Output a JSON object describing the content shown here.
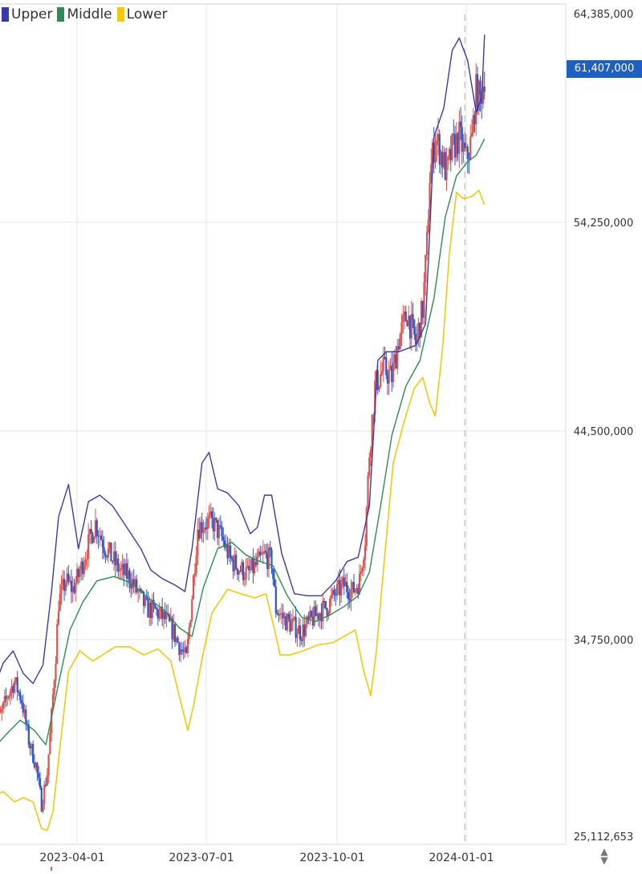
{
  "chart_data": {
    "type": "candlestick",
    "legend": [
      {
        "key": "upper",
        "label": "Upper",
        "color": "#3a3aa6"
      },
      {
        "key": "middle",
        "label": "Middle",
        "color": "#2e8b57"
      },
      {
        "key": "lower",
        "label": "Lower",
        "color": "#f2c811"
      }
    ],
    "y_tick_labels": [
      "64,385,000",
      "54,250,000",
      "44,500,000",
      "34,750,000",
      "25,112,653"
    ],
    "y_tick_values": [
      64385000,
      54250000,
      44500000,
      34750000,
      25112653
    ],
    "ylim": [
      25112653,
      64385000
    ],
    "x_tick_labels": [
      "2023-04-01",
      "2023-07-01",
      "2023-10-01",
      "2024-01-01"
    ],
    "x_tick_dates": [
      "2023-04-01",
      "2023-07-01",
      "2023-10-01",
      "2024-01-01"
    ],
    "xlim": [
      "2023-02-01",
      "2024-01-14"
    ],
    "last_price_label": "61,407,000",
    "last_price_value": 61407000,
    "crosshair_date": "2023-12-31",
    "grid": true,
    "legend_position": "top-left",
    "colors": {
      "up": "#d9534f",
      "down": "#2f56c7",
      "badge": "#1f5fbf",
      "grid": "#e6e6e6",
      "crosshair": "#bbbbbb"
    },
    "price_path": [
      [
        "2023-02-01",
        30500000
      ],
      [
        "2023-02-06",
        31000000
      ],
      [
        "2023-02-11",
        32000000
      ],
      [
        "2023-02-16",
        32700000
      ],
      [
        "2023-02-21",
        31800000
      ],
      [
        "2023-02-26",
        29800000
      ],
      [
        "2023-03-03",
        28600000
      ],
      [
        "2023-03-07",
        26700000
      ],
      [
        "2023-03-11",
        28200000
      ],
      [
        "2023-03-14",
        31000000
      ],
      [
        "2023-03-17",
        34000000
      ],
      [
        "2023-03-19",
        36500000
      ],
      [
        "2023-03-24",
        37500000
      ],
      [
        "2023-03-29",
        37100000
      ],
      [
        "2023-04-03",
        37900000
      ],
      [
        "2023-04-08",
        39000000
      ],
      [
        "2023-04-14",
        40200000
      ],
      [
        "2023-04-20",
        39200000
      ],
      [
        "2023-04-26",
        38500000
      ],
      [
        "2023-05-02",
        37900000
      ],
      [
        "2023-05-08",
        37700000
      ],
      [
        "2023-05-14",
        36900000
      ],
      [
        "2023-05-20",
        36200000
      ],
      [
        "2023-05-26",
        36100000
      ],
      [
        "2023-06-02",
        35700000
      ],
      [
        "2023-06-08",
        35100000
      ],
      [
        "2023-06-13",
        34300000
      ],
      [
        "2023-06-17",
        33800000
      ],
      [
        "2023-06-21",
        36800000
      ],
      [
        "2023-06-25",
        40000000
      ],
      [
        "2023-06-30",
        40200000
      ],
      [
        "2023-07-06",
        40200000
      ],
      [
        "2023-07-12",
        39500000
      ],
      [
        "2023-07-18",
        38500000
      ],
      [
        "2023-07-24",
        38100000
      ],
      [
        "2023-07-30",
        37800000
      ],
      [
        "2023-08-05",
        38200000
      ],
      [
        "2023-08-11",
        38700000
      ],
      [
        "2023-08-16",
        38400000
      ],
      [
        "2023-08-19",
        36200000
      ],
      [
        "2023-08-25",
        35700000
      ],
      [
        "2023-08-31",
        35400000
      ],
      [
        "2023-09-06",
        35100000
      ],
      [
        "2023-09-12",
        35600000
      ],
      [
        "2023-09-18",
        36000000
      ],
      [
        "2023-09-24",
        36300000
      ],
      [
        "2023-09-30",
        36900000
      ],
      [
        "2023-10-06",
        37300000
      ],
      [
        "2023-10-12",
        37000000
      ],
      [
        "2023-10-17",
        37500000
      ],
      [
        "2023-10-21",
        39500000
      ],
      [
        "2023-10-24",
        43500000
      ],
      [
        "2023-10-28",
        46600000
      ],
      [
        "2023-11-03",
        47400000
      ],
      [
        "2023-11-09",
        47000000
      ],
      [
        "2023-11-14",
        48800000
      ],
      [
        "2023-11-20",
        50000000
      ],
      [
        "2023-11-26",
        48600000
      ],
      [
        "2023-12-01",
        50200000
      ],
      [
        "2023-12-04",
        53200000
      ],
      [
        "2023-12-06",
        56500000
      ],
      [
        "2023-12-10",
        58400000
      ],
      [
        "2023-12-14",
        57600000
      ],
      [
        "2023-12-18",
        56600000
      ],
      [
        "2023-12-22",
        57800000
      ],
      [
        "2023-12-27",
        58400000
      ],
      [
        "2024-01-01",
        57300000
      ],
      [
        "2024-01-05",
        58300000
      ],
      [
        "2024-01-08",
        60600000
      ],
      [
        "2024-01-11",
        60200000
      ],
      [
        "2024-01-14",
        61400000
      ]
    ],
    "bands": {
      "upper": [
        [
          "2023-02-01",
          32300000
        ],
        [
          "2023-02-08",
          33600000
        ],
        [
          "2023-02-15",
          34200000
        ],
        [
          "2023-02-22",
          33100000
        ],
        [
          "2023-03-01",
          32600000
        ],
        [
          "2023-03-08",
          33500000
        ],
        [
          "2023-03-14",
          37000000
        ],
        [
          "2023-03-19",
          40500000
        ],
        [
          "2023-03-26",
          42000000
        ],
        [
          "2023-04-02",
          39000000
        ],
        [
          "2023-04-09",
          41200000
        ],
        [
          "2023-04-17",
          41500000
        ],
        [
          "2023-04-26",
          41000000
        ],
        [
          "2023-05-06",
          40000000
        ],
        [
          "2023-05-16",
          39000000
        ],
        [
          "2023-05-23",
          38000000
        ],
        [
          "2023-05-31",
          37600000
        ],
        [
          "2023-06-09",
          37300000
        ],
        [
          "2023-06-16",
          37000000
        ],
        [
          "2023-06-21",
          39000000
        ],
        [
          "2023-06-28",
          43000000
        ],
        [
          "2023-07-03",
          43500000
        ],
        [
          "2023-07-09",
          41800000
        ],
        [
          "2023-07-16",
          41600000
        ],
        [
          "2023-07-24",
          41000000
        ],
        [
          "2023-08-01",
          39700000
        ],
        [
          "2023-08-06",
          40000000
        ],
        [
          "2023-08-11",
          41500000
        ],
        [
          "2023-08-16",
          41500000
        ],
        [
          "2023-08-23",
          38800000
        ],
        [
          "2023-09-01",
          36900000
        ],
        [
          "2023-09-10",
          36800000
        ],
        [
          "2023-09-20",
          36800000
        ],
        [
          "2023-09-30",
          37500000
        ],
        [
          "2023-10-08",
          38400000
        ],
        [
          "2023-10-16",
          38600000
        ],
        [
          "2023-10-24",
          41000000
        ],
        [
          "2023-10-30",
          47800000
        ],
        [
          "2023-11-05",
          48200000
        ],
        [
          "2023-11-14",
          48200000
        ],
        [
          "2023-11-26",
          48500000
        ],
        [
          "2023-12-03",
          49500000
        ],
        [
          "2023-12-09",
          58400000
        ],
        [
          "2023-12-16",
          59800000
        ],
        [
          "2023-12-22",
          62600000
        ],
        [
          "2023-12-27",
          63200000
        ],
        [
          "2024-01-02",
          62100000
        ],
        [
          "2024-01-08",
          59600000
        ],
        [
          "2024-01-12",
          60300000
        ],
        [
          "2024-01-14",
          64400000
        ]
      ],
      "middle": [
        [
          "2023-02-01",
          29400000
        ],
        [
          "2023-02-10",
          30100000
        ],
        [
          "2023-02-20",
          30800000
        ],
        [
          "2023-03-02",
          30300000
        ],
        [
          "2023-03-10",
          29600000
        ],
        [
          "2023-03-19",
          32600000
        ],
        [
          "2023-03-27",
          35200000
        ],
        [
          "2023-04-05",
          36500000
        ],
        [
          "2023-04-15",
          37500000
        ],
        [
          "2023-04-27",
          37700000
        ],
        [
          "2023-05-09",
          37400000
        ],
        [
          "2023-05-21",
          36700000
        ],
        [
          "2023-06-02",
          36100000
        ],
        [
          "2023-06-12",
          35300000
        ],
        [
          "2023-06-21",
          34900000
        ],
        [
          "2023-06-29",
          37200000
        ],
        [
          "2023-07-09",
          39000000
        ],
        [
          "2023-07-19",
          39300000
        ],
        [
          "2023-07-29",
          38700000
        ],
        [
          "2023-08-08",
          38400000
        ],
        [
          "2023-08-17",
          38200000
        ],
        [
          "2023-08-27",
          36800000
        ],
        [
          "2023-09-06",
          35800000
        ],
        [
          "2023-09-16",
          35600000
        ],
        [
          "2023-09-26",
          35900000
        ],
        [
          "2023-10-06",
          36300000
        ],
        [
          "2023-10-16",
          36800000
        ],
        [
          "2023-10-24",
          37900000
        ],
        [
          "2023-11-01",
          41000000
        ],
        [
          "2023-11-09",
          44300000
        ],
        [
          "2023-11-19",
          46600000
        ],
        [
          "2023-11-29",
          47800000
        ],
        [
          "2023-12-09",
          50700000
        ],
        [
          "2023-12-17",
          54500000
        ],
        [
          "2023-12-25",
          56500000
        ],
        [
          "2024-01-02",
          57200000
        ],
        [
          "2024-01-08",
          57500000
        ],
        [
          "2024-01-14",
          58300000
        ]
      ],
      "lower": [
        [
          "2023-02-01",
          27100000
        ],
        [
          "2023-02-08",
          27300000
        ],
        [
          "2023-02-16",
          26800000
        ],
        [
          "2023-02-22",
          27000000
        ],
        [
          "2023-03-01",
          26800000
        ],
        [
          "2023-03-07",
          25500000
        ],
        [
          "2023-03-11",
          25400000
        ],
        [
          "2023-03-15",
          26300000
        ],
        [
          "2023-03-20",
          29500000
        ],
        [
          "2023-03-26",
          33200000
        ],
        [
          "2023-04-03",
          34200000
        ],
        [
          "2023-04-12",
          33700000
        ],
        [
          "2023-04-19",
          34000000
        ],
        [
          "2023-04-28",
          34400000
        ],
        [
          "2023-05-08",
          34400000
        ],
        [
          "2023-05-18",
          34000000
        ],
        [
          "2023-05-28",
          34300000
        ],
        [
          "2023-06-06",
          33700000
        ],
        [
          "2023-06-13",
          31700000
        ],
        [
          "2023-06-18",
          30300000
        ],
        [
          "2023-06-22",
          31500000
        ],
        [
          "2023-06-28",
          33800000
        ],
        [
          "2023-07-05",
          36000000
        ],
        [
          "2023-07-16",
          37100000
        ],
        [
          "2023-07-25",
          36900000
        ],
        [
          "2023-08-04",
          36700000
        ],
        [
          "2023-08-12",
          36900000
        ],
        [
          "2023-08-17",
          35500000
        ],
        [
          "2023-08-22",
          34000000
        ],
        [
          "2023-08-29",
          34000000
        ],
        [
          "2023-09-07",
          34200000
        ],
        [
          "2023-09-18",
          34500000
        ],
        [
          "2023-09-28",
          34600000
        ],
        [
          "2023-10-06",
          34900000
        ],
        [
          "2023-10-14",
          35200000
        ],
        [
          "2023-10-20",
          33200000
        ],
        [
          "2023-10-25",
          32000000
        ],
        [
          "2023-10-29",
          34200000
        ],
        [
          "2023-11-03",
          38000000
        ],
        [
          "2023-11-10",
          43000000
        ],
        [
          "2023-11-18",
          45000000
        ],
        [
          "2023-11-25",
          46500000
        ],
        [
          "2023-12-01",
          47000000
        ],
        [
          "2023-12-06",
          45800000
        ],
        [
          "2023-12-10",
          45200000
        ],
        [
          "2023-12-15",
          48300000
        ],
        [
          "2023-12-20",
          52800000
        ],
        [
          "2023-12-25",
          55700000
        ],
        [
          "2023-12-30",
          55400000
        ],
        [
          "2024-01-05",
          55500000
        ],
        [
          "2024-01-10",
          55800000
        ],
        [
          "2024-01-14",
          55100000
        ]
      ]
    }
  }
}
